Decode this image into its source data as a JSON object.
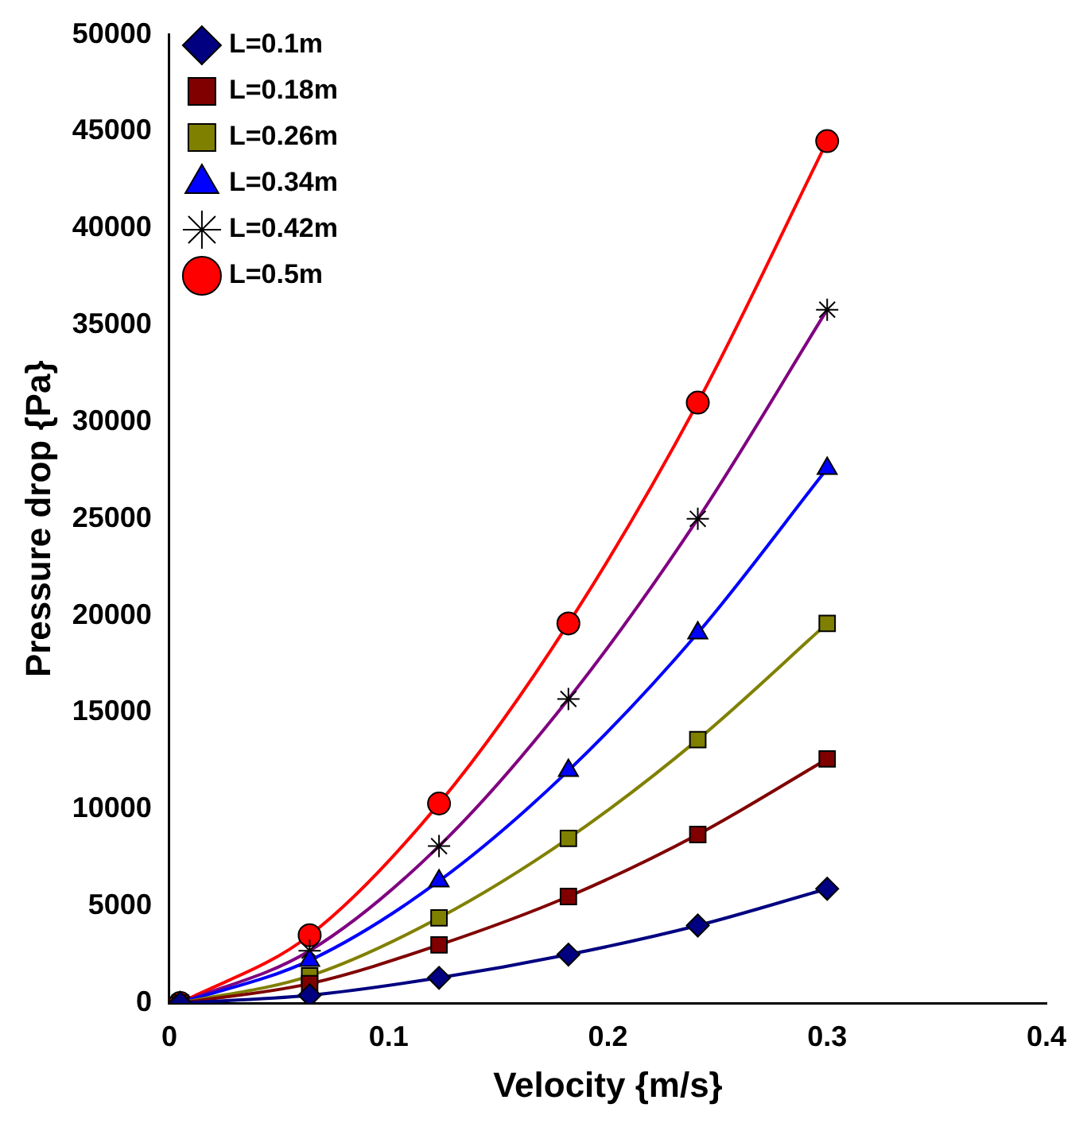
{
  "chart_data": {
    "type": "line",
    "xlabel": "Velocity {m/s}",
    "ylabel": "Pressure drop {Pa}",
    "xlim": [
      0,
      0.4
    ],
    "xticks": [
      0,
      0.1,
      0.2,
      0.3,
      0.4
    ],
    "ylim": [
      0,
      50000
    ],
    "yticks": [
      0,
      5000,
      10000,
      15000,
      20000,
      25000,
      30000,
      35000,
      40000,
      45000,
      50000
    ],
    "grid": false,
    "legend": "top left",
    "x": [
      0.005,
      0.064,
      0.123,
      0.182,
      0.241,
      0.3
    ],
    "series": [
      {
        "name": "L=0.1m",
        "color": "#000080",
        "marker": "diamond",
        "values": [
          0,
          400,
          1300,
          2500,
          4000,
          5900
        ]
      },
      {
        "name": "L=0.18m",
        "color": "#800000",
        "marker": "square",
        "values": [
          0,
          1000,
          3000,
          5500,
          8700,
          12600
        ]
      },
      {
        "name": "L=0.26m",
        "color": "#808000",
        "marker": "square",
        "values": [
          0,
          1400,
          4400,
          8500,
          13600,
          19600
        ]
      },
      {
        "name": "L=0.34m",
        "color": "#0000ff",
        "marker": "triangle",
        "values": [
          0,
          2200,
          6300,
          12000,
          19100,
          27600
        ]
      },
      {
        "name": "L=0.42m",
        "color": "#800080",
        "marker": "cross",
        "values": [
          0,
          2700,
          8100,
          15700,
          25000,
          35800
        ]
      },
      {
        "name": "L=0.5m",
        "color": "#ff0000",
        "marker": "circle",
        "values": [
          0,
          3500,
          10300,
          19600,
          31000,
          44500
        ]
      }
    ]
  }
}
